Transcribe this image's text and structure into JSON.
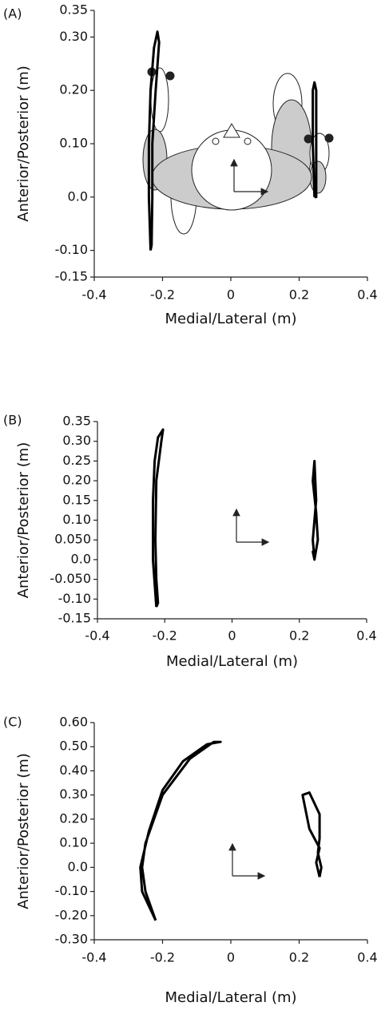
{
  "chart_data": [
    {
      "type": "line",
      "panel_label": "(A)",
      "xlabel": "Medial/Lateral (m)",
      "ylabel": "Anterior/Posterior (m)",
      "xlim": [
        -0.4,
        0.4
      ],
      "xticks": [
        -0.4,
        -0.2,
        0,
        0.2,
        0.4
      ],
      "ylim": [
        -0.15,
        0.35
      ],
      "yticks": [
        -0.15,
        {
          "value": -0.1,
          "label": "-0.10"
        },
        {
          "value": 0,
          "label": "0.0"
        },
        {
          "value": 0.1,
          "label": "0.10"
        },
        {
          "value": 0.2,
          "label": "0.20"
        },
        {
          "value": 0.3,
          "label": "0.30"
        },
        0.35
      ],
      "series": [
        {
          "color": "#000000",
          "x": [
            -0.235,
            -0.24,
            -0.24,
            -0.235,
            -0.225,
            -0.215,
            -0.21,
            -0.22,
            -0.23,
            -0.23,
            -0.232,
            -0.235
          ],
          "values": [
            -0.1,
            0.0,
            0.1,
            0.2,
            0.28,
            0.31,
            0.29,
            0.2,
            0.1,
            0.0,
            -0.09,
            -0.1
          ]
        },
        {
          "color": "#000000",
          "x": [
            0.245,
            0.24,
            0.24,
            0.245,
            0.25,
            0.25,
            0.25,
            0.245
          ],
          "values": [
            0.0,
            0.1,
            0.2,
            0.215,
            0.2,
            0.1,
            0.0,
            0.0
          ]
        }
      ]
    },
    {
      "type": "line",
      "panel_label": "(B)",
      "xlabel": "Medial/Lateral (m)",
      "ylabel": "Anterior/Posterior (m)",
      "xlim": [
        -0.4,
        0.4
      ],
      "xticks": [
        -0.4,
        -0.2,
        0,
        0.2,
        0.4
      ],
      "ylim": [
        -0.15,
        0.35
      ],
      "yticks": [
        -0.15,
        {
          "value": -0.1,
          "label": "-0.10"
        },
        {
          "value": -0.05,
          "label": "-0.050"
        },
        {
          "value": 0,
          "label": "0.0"
        },
        {
          "value": 0.05,
          "label": "0.050"
        },
        {
          "value": 0.1,
          "label": "0.10"
        },
        0.15,
        {
          "value": 0.2,
          "label": "0.20"
        },
        0.25,
        {
          "value": 0.3,
          "label": "0.30"
        },
        0.35
      ],
      "series": [
        {
          "color": "#000000",
          "x": [
            -0.225,
            -0.235,
            -0.235,
            -0.23,
            -0.22,
            -0.205,
            -0.21,
            -0.225,
            -0.228,
            -0.225,
            -0.22,
            -0.225
          ],
          "values": [
            -0.12,
            0.0,
            0.15,
            0.25,
            0.31,
            0.33,
            0.3,
            0.2,
            0.05,
            -0.05,
            -0.11,
            -0.12
          ]
        },
        {
          "color": "#000000",
          "x": [
            0.245,
            0.24,
            0.25,
            0.245,
            0.24,
            0.25,
            0.255,
            0.245,
            0.24,
            0.245
          ],
          "values": [
            0.0,
            0.05,
            0.15,
            0.25,
            0.2,
            0.12,
            0.05,
            0.0,
            0.02,
            0.0
          ]
        }
      ]
    },
    {
      "type": "line",
      "panel_label": "(C)",
      "xlabel": "Medial/Lateral (m)",
      "ylabel": "Anterior/Posterior (m)",
      "xlim": [
        -0.4,
        0.4
      ],
      "xticks": [
        -0.4,
        -0.2,
        0,
        0.2,
        0.4
      ],
      "ylim": [
        -0.3,
        0.6
      ],
      "yticks": [
        {
          "value": -0.3,
          "label": "-0.30"
        },
        {
          "value": -0.2,
          "label": "-0.20"
        },
        {
          "value": -0.1,
          "label": "-0.10"
        },
        {
          "value": 0,
          "label": "0.0"
        },
        {
          "value": 0.1,
          "label": "0.10"
        },
        {
          "value": 0.2,
          "label": "0.20"
        },
        {
          "value": 0.3,
          "label": "0.30"
        },
        {
          "value": 0.4,
          "label": "0.40"
        },
        {
          "value": 0.5,
          "label": "0.50"
        },
        {
          "value": 0.6,
          "label": "0.60"
        }
      ],
      "series": [
        {
          "color": "#000000",
          "x": [
            -0.22,
            -0.25,
            -0.26,
            -0.25,
            -0.2,
            -0.12,
            -0.05,
            -0.03,
            -0.07,
            -0.14,
            -0.2,
            -0.24,
            -0.265,
            -0.26,
            -0.22
          ],
          "values": [
            -0.22,
            -0.1,
            0.0,
            0.1,
            0.3,
            0.45,
            0.52,
            0.52,
            0.51,
            0.44,
            0.32,
            0.15,
            0.0,
            -0.1,
            -0.22
          ]
        },
        {
          "color": "#000000",
          "x": [
            0.26,
            0.25,
            0.26,
            0.23,
            0.21,
            0.23,
            0.26,
            0.26,
            0.255,
            0.265,
            0.26
          ],
          "values": [
            -0.04,
            0.02,
            0.08,
            0.16,
            0.3,
            0.31,
            0.22,
            0.12,
            0.06,
            0.0,
            -0.04
          ]
        }
      ]
    }
  ]
}
